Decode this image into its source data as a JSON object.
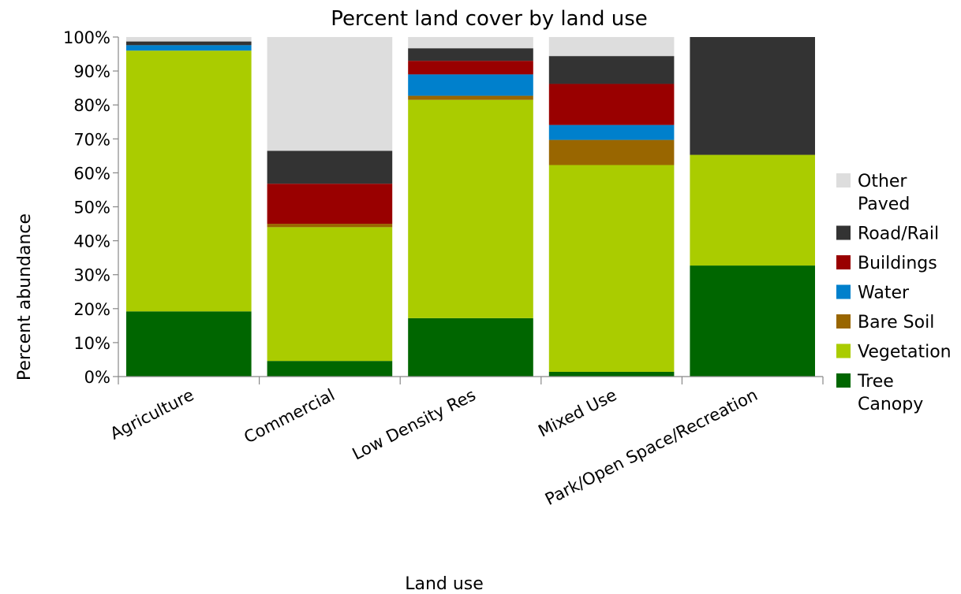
{
  "chart_data": {
    "type": "bar",
    "stacked": true,
    "title": "Percent land cover by land use",
    "xlabel": "Land use",
    "ylabel": "Percent abundance",
    "ylim": [
      0,
      100
    ],
    "y_ticks": [
      0,
      10,
      20,
      30,
      40,
      50,
      60,
      70,
      80,
      90,
      100
    ],
    "y_tick_format": "percent",
    "categories": [
      "Agriculture",
      "Commercial",
      "Low Density Res",
      "Mixed Use",
      "Park/Open Space/Recreation"
    ],
    "series": [
      {
        "name": "Tree Canopy",
        "color": "#006600",
        "values": [
          19.2,
          4.6,
          17.2,
          1.4,
          32.7
        ]
      },
      {
        "name": "Vegetation",
        "color": "#aacc00",
        "values": [
          76.8,
          39.4,
          64.3,
          60.9,
          32.6
        ]
      },
      {
        "name": "Bare Soil",
        "color": "#996600",
        "values": [
          0.0,
          1.0,
          1.2,
          7.4,
          0.0
        ]
      },
      {
        "name": "Water",
        "color": "#0080cc",
        "values": [
          1.6,
          0.0,
          6.3,
          4.4,
          0.0
        ]
      },
      {
        "name": "Buildings",
        "color": "#990000",
        "values": [
          0.0,
          11.8,
          4.0,
          12.1,
          0.0
        ]
      },
      {
        "name": "Road/Rail",
        "color": "#333333",
        "values": [
          1.1,
          9.7,
          3.7,
          8.2,
          34.7
        ]
      },
      {
        "name": "Other Paved",
        "color": "#dddddd",
        "values": [
          1.3,
          33.5,
          3.3,
          5.6,
          0.0
        ]
      }
    ],
    "legend": {
      "position": "right",
      "order": [
        "Other Paved",
        "Road/Rail",
        "Buildings",
        "Water",
        "Bare Soil",
        "Vegetation",
        "Tree Canopy"
      ],
      "entries": [
        {
          "lines": [
            "Other",
            "Paved"
          ]
        },
        {
          "lines": [
            "Road/Rail"
          ]
        },
        {
          "lines": [
            "Buildings"
          ]
        },
        {
          "lines": [
            "Water"
          ]
        },
        {
          "lines": [
            "Bare Soil"
          ]
        },
        {
          "lines": [
            "Vegetation"
          ]
        },
        {
          "lines": [
            "Tree",
            "Canopy"
          ]
        }
      ]
    },
    "grid": false,
    "plot_background": "#ffffff",
    "tick_label_rotation_deg": -27
  }
}
